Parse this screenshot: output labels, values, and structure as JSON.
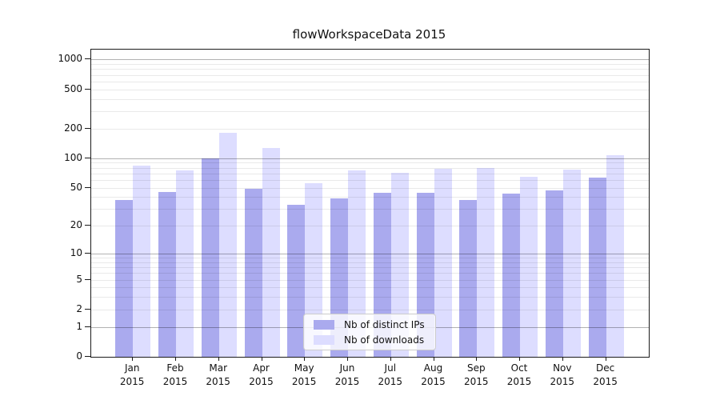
{
  "title": "flowWorkspaceData 2015",
  "chart_data": {
    "type": "bar",
    "title": "flowWorkspaceData 2015",
    "yscale": "log1p",
    "ylim": [
      0,
      1000
    ],
    "grid": true,
    "categories": [
      "Jan",
      "Feb",
      "Mar",
      "Apr",
      "May",
      "Jun",
      "Jul",
      "Aug",
      "Sep",
      "Oct",
      "Nov",
      "Dec"
    ],
    "year_label": "2015",
    "series": [
      {
        "name": "Nb of distinct IPs",
        "color": "#aaaaee",
        "values": [
          37,
          45,
          100,
          49,
          33,
          39,
          44,
          44,
          37,
          43,
          47,
          63
        ]
      },
      {
        "name": "Nb of downloads",
        "color": "#ddddff",
        "values": [
          84,
          75,
          180,
          127,
          55,
          75,
          71,
          78,
          80,
          64,
          77,
          108
        ]
      }
    ],
    "y_ticks": [
      0,
      1,
      2,
      5,
      10,
      20,
      50,
      100,
      200,
      500,
      1000
    ],
    "major_gridlines": [
      1,
      10,
      100,
      1000
    ],
    "minor_gridlines": [
      2,
      3,
      4,
      5,
      6,
      7,
      8,
      9,
      20,
      30,
      40,
      50,
      60,
      70,
      80,
      90,
      200,
      300,
      400,
      500,
      600,
      700,
      800,
      900
    ],
    "legend": {
      "position": "lower center"
    }
  }
}
